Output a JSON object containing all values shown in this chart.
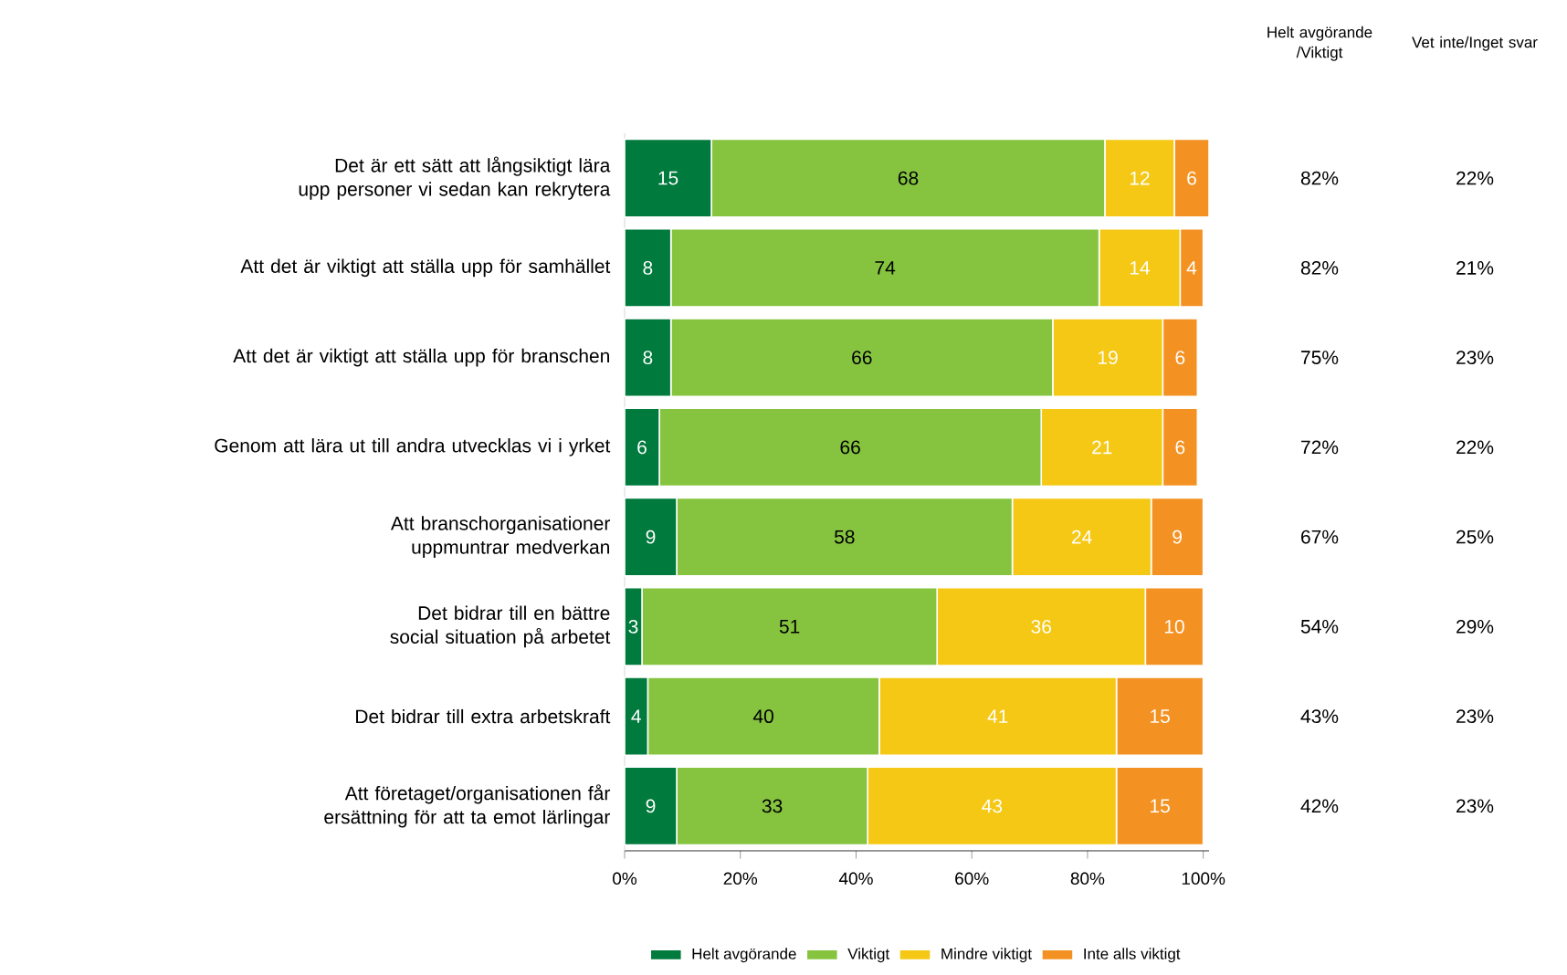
{
  "chart_data": [
    {
      "type": "bar",
      "orientation": "horizontal",
      "stacked": true,
      "data_labels": true,
      "legend": "bottom",
      "categories": [
        "Det är ett sätt att långsiktigt lära upp personer vi sedan kan rekrytera",
        "Att det är viktigt att ställa upp för samhället",
        "Att det är viktigt att ställa upp för branschen",
        "Genom att lära ut till andra utvecklas vi i yrket",
        "Att branschorganisationer uppmuntrar medverkan",
        "Det bidrar till en bättre social situation på arbetet",
        "Det bidrar till extra arbetskraft",
        "Att företaget/organisationen får ersättning för att ta emot lärlingar"
      ],
      "series": [
        {
          "name": "Helt avgörande",
          "color": "#007a3d",
          "values": [
            15,
            8,
            8,
            6,
            9,
            3,
            4,
            9
          ]
        },
        {
          "name": "Viktigt",
          "color": "#86c440",
          "values": [
            68,
            74,
            66,
            66,
            58,
            51,
            40,
            33
          ]
        },
        {
          "name": "Mindre viktigt",
          "color": "#f5c815",
          "values": [
            12,
            14,
            19,
            21,
            24,
            36,
            41,
            43
          ]
        },
        {
          "name": "Inte alls viktigt",
          "color": "#f39223",
          "values": [
            6,
            4,
            6,
            6,
            9,
            10,
            15,
            15
          ]
        }
      ],
      "xlim": [
        0,
        101
      ],
      "xticks": [
        {
          "value": 0,
          "label": "0%"
        },
        {
          "value": 20,
          "label": "20%"
        },
        {
          "value": 40,
          "label": "40%"
        },
        {
          "value": 60,
          "label": "60%"
        },
        {
          "value": 80,
          "label": "80%"
        },
        {
          "value": 100,
          "label": "100%"
        }
      ]
    },
    {
      "type": "other",
      "categories": [
        "Helt avgörande /Viktigt",
        "Vet inte/Inget svar"
      ],
      "annotations": [
        "82%",
        "22%",
        "82%",
        "21%",
        "75%",
        "23%",
        "72%",
        "22%",
        "67%",
        "25%",
        "54%",
        "29%",
        "43%",
        "23%",
        "42%",
        "23%"
      ]
    }
  ]
}
